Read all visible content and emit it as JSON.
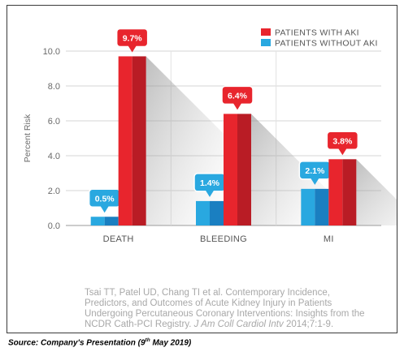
{
  "chart_data": {
    "type": "bar",
    "categories": [
      "DEATH",
      "BLEEDING",
      "MI"
    ],
    "series": [
      {
        "name": "PATIENTS WITHOUT AKI",
        "values": [
          0.5,
          1.4,
          2.1
        ],
        "labels": [
          "0.5%",
          "1.4%",
          "2.1%"
        ],
        "color": "#29a8e0"
      },
      {
        "name": "PATIENTS WITH AKI",
        "values": [
          9.7,
          6.4,
          3.8
        ],
        "labels": [
          "9.7%",
          "6.4%",
          "3.8%"
        ],
        "color": "#e8252d"
      }
    ],
    "ylabel": "Percent Risk",
    "ylim": [
      0,
      10
    ],
    "yticks": [
      "0.0",
      "2.0",
      "4.0",
      "6.0",
      "8.0",
      "10.0"
    ],
    "grid": true,
    "legend_position": "top-right"
  },
  "citation": {
    "text": "Tsai TT, Patel UD, Chang TI et al. Contemporary Incidence, Predictors, and Outcomes of Acute Kidney Injury in Patients Undergoing Percutaneous Coronary Interventions: Insights from the NCDR Cath-PCI Registry. ",
    "journal": "J Am Coll Cardiol Intv",
    "tail": " 2014;7:1-9."
  },
  "source": {
    "prefix": "Source: Company's Presentation (9",
    "sup": "th",
    "suffix": " May 2019)"
  }
}
